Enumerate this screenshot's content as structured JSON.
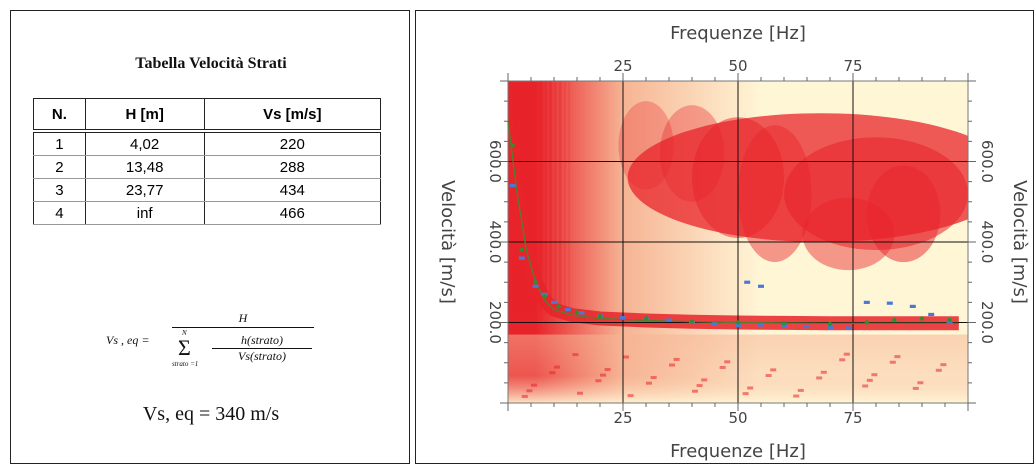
{
  "left_panel": {
    "table_title": "Tabella Velocità Strati",
    "headers": [
      "N.",
      "H [m]",
      "Vs [m/s]"
    ],
    "rows": [
      [
        "1",
        "4,02",
        "220"
      ],
      [
        "2",
        "13,48",
        "288"
      ],
      [
        "3",
        "23,77",
        "434"
      ],
      [
        "4",
        "inf",
        "466"
      ]
    ],
    "formula": {
      "lhs": "Vs , eq =",
      "numerator": "H",
      "sum_upper": "N",
      "sum_lower": "strato =1",
      "inner_numerator": "h(strato)",
      "inner_denominator": "Vs(strato)"
    },
    "result": "Vs, eq = 340 m/s"
  },
  "chart_data": {
    "type": "heatmap",
    "title": "",
    "xlabel": "Frequenze [Hz]",
    "ylabel": "Velocità [m/s]",
    "xlim": [
      0,
      100
    ],
    "ylim": [
      0,
      800
    ],
    "x_ticks": [
      25,
      50,
      75
    ],
    "y_ticks": [
      200,
      400,
      600
    ],
    "x_tick_labels": [
      "25",
      "50",
      "75"
    ],
    "y_tick_labels": [
      "200.0",
      "400.0",
      "600.0"
    ],
    "grid": true,
    "colormap": [
      "#fff6d6",
      "#f6b494",
      "#e8232a"
    ],
    "series": [
      {
        "kind": "picked_points",
        "color": "#4a78d8",
        "points": [
          [
            1,
            540
          ],
          [
            3,
            360
          ],
          [
            6,
            290
          ],
          [
            8,
            270
          ],
          [
            10,
            250
          ],
          [
            13,
            232
          ],
          [
            16,
            224
          ],
          [
            20,
            216
          ],
          [
            25,
            212
          ],
          [
            30,
            210
          ],
          [
            35,
            206
          ],
          [
            40,
            200
          ],
          [
            45,
            196
          ],
          [
            50,
            192
          ],
          [
            55,
            194
          ],
          [
            60,
            192
          ],
          [
            65,
            190
          ],
          [
            70,
            188
          ],
          [
            74,
            186
          ],
          [
            52,
            300
          ],
          [
            55,
            290
          ],
          [
            78,
            250
          ],
          [
            83,
            248
          ],
          [
            88,
            240
          ],
          [
            92,
            220
          ],
          [
            96,
            200
          ]
        ]
      },
      {
        "kind": "model_curve_points",
        "color": "#2f8f2f",
        "points": [
          [
            1,
            640
          ],
          [
            3,
            380
          ],
          [
            6,
            300
          ],
          [
            8,
            265
          ],
          [
            11,
            240
          ],
          [
            15,
            225
          ],
          [
            20,
            215
          ],
          [
            30,
            210
          ],
          [
            40,
            202
          ],
          [
            50,
            200
          ],
          [
            60,
            198
          ],
          [
            70,
            196
          ],
          [
            78,
            200
          ],
          [
            84,
            206
          ],
          [
            90,
            210
          ],
          [
            96,
            206
          ]
        ]
      }
    ],
    "model_curve": {
      "color": "#5b7a2e",
      "points": [
        [
          0,
          700
        ],
        [
          2,
          520
        ],
        [
          4,
          380
        ],
        [
          6,
          300
        ],
        [
          8,
          255
        ],
        [
          10,
          232
        ],
        [
          14,
          218
        ],
        [
          20,
          210
        ],
        [
          30,
          205
        ],
        [
          40,
          202
        ],
        [
          50,
          200
        ],
        [
          60,
          199
        ],
        [
          70,
          198
        ],
        [
          80,
          198
        ],
        [
          90,
          198
        ],
        [
          98,
          198
        ]
      ]
    }
  }
}
